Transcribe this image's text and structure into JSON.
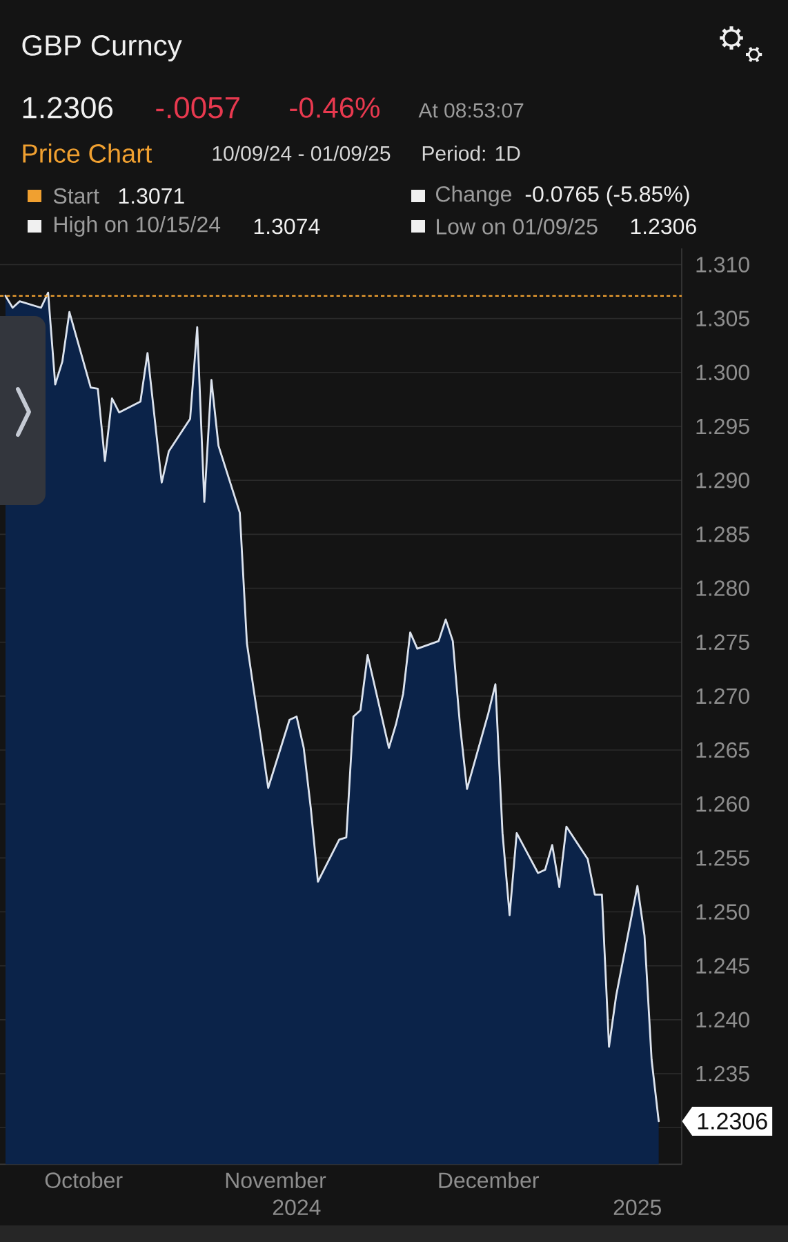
{
  "chart_data": {
    "type": "area",
    "title": "GBP Curncy",
    "subtitle": "Price Chart",
    "x": [
      "2024-10-09",
      "2024-10-10",
      "2024-10-11",
      "2024-10-14",
      "2024-10-15",
      "2024-10-16",
      "2024-10-17",
      "2024-10-18",
      "2024-10-21",
      "2024-10-22",
      "2024-10-23",
      "2024-10-24",
      "2024-10-25",
      "2024-10-28",
      "2024-10-29",
      "2024-10-30",
      "2024-10-31",
      "2024-11-01",
      "2024-11-04",
      "2024-11-05",
      "2024-11-06",
      "2024-11-07",
      "2024-11-08",
      "2024-11-11",
      "2024-11-12",
      "2024-11-13",
      "2024-11-14",
      "2024-11-15",
      "2024-11-18",
      "2024-11-19",
      "2024-11-20",
      "2024-11-21",
      "2024-11-22",
      "2024-11-25",
      "2024-11-26",
      "2024-11-27",
      "2024-11-28",
      "2024-11-29",
      "2024-12-02",
      "2024-12-03",
      "2024-12-04",
      "2024-12-05",
      "2024-12-06",
      "2024-12-09",
      "2024-12-10",
      "2024-12-11",
      "2024-12-12",
      "2024-12-13",
      "2024-12-16",
      "2024-12-17",
      "2024-12-18",
      "2024-12-19",
      "2024-12-20",
      "2024-12-23",
      "2024-12-24",
      "2024-12-25",
      "2024-12-26",
      "2024-12-27",
      "2024-12-30",
      "2024-12-31",
      "2025-01-01",
      "2025-01-02",
      "2025-01-03",
      "2025-01-06",
      "2025-01-07",
      "2025-01-08",
      "2025-01-09"
    ],
    "series": [
      {
        "color": "#0b2349",
        "values": [
          1.3071,
          1.306,
          1.3066,
          1.306,
          1.3074,
          1.2989,
          1.301,
          1.3056,
          1.2986,
          1.2985,
          1.2918,
          1.2976,
          1.2963,
          1.2973,
          1.3018,
          1.2958,
          1.2898,
          1.2927,
          1.2957,
          1.3042,
          1.288,
          1.2993,
          1.2932,
          1.287,
          1.2749,
          1.2704,
          1.266,
          1.2615,
          1.2678,
          1.2681,
          1.2652,
          1.2596,
          1.2528,
          1.2567,
          1.2569,
          1.2681,
          1.2687,
          1.2738,
          1.2652,
          1.2674,
          1.2702,
          1.2759,
          1.2744,
          1.2751,
          1.2771,
          1.2751,
          1.2674,
          1.2614,
          1.2684,
          1.2711,
          1.2573,
          1.2497,
          1.2573,
          1.2536,
          1.2539,
          1.2562,
          1.2523,
          1.2579,
          1.2549,
          1.2516,
          1.2516,
          1.2375,
          1.2422,
          1.2524,
          1.2478,
          1.2363,
          1.2306
        ]
      }
    ],
    "xlim": [
      "2024-10-08T05:20",
      "2025-01-12T05:50"
    ],
    "xticks": [
      {
        "value": "2024-10-20",
        "label": "October"
      },
      {
        "value": "2024-11-16",
        "label": "November"
      },
      {
        "value": "2024-12-16",
        "label": "December"
      }
    ],
    "x2lim": [
      "2024-10-08T05:20",
      "2025-01-12T05:50"
    ],
    "x2ticks": [
      {
        "value": "2024-11-19",
        "label": "2024"
      },
      {
        "value": "2025-01-06",
        "label": "2025"
      }
    ],
    "ylim": [
      1.2266,
      1.3115
    ],
    "yticks": [
      {
        "value": 1.23,
        "label": null
      },
      1.235,
      {
        "value": 1.24,
        "label": "1.240"
      },
      1.245,
      {
        "value": 1.25,
        "label": "1.250"
      },
      1.255,
      {
        "value": 1.26,
        "label": "1.260"
      },
      1.265,
      {
        "value": 1.27,
        "label": "1.270"
      },
      1.275,
      {
        "value": 1.28,
        "label": "1.280"
      },
      1.285,
      {
        "value": 1.29,
        "label": "1.290"
      },
      1.295,
      {
        "value": 1.3,
        "label": "1.300"
      },
      1.305,
      {
        "value": 1.31,
        "label": "1.310"
      }
    ],
    "grid": "y",
    "ref_lines": [
      {
        "axis": "y",
        "value": 1.3071,
        "label": "Start",
        "color": "#f0a030",
        "line_style": "dashed"
      }
    ],
    "annotations": [
      "1.2306",
      "-.0057",
      "-0.46%",
      "At 08:53:07",
      "10/09/24 - 01/09/25",
      "Period: 1D",
      "1.3071",
      "Change",
      "-0.0765 (-5.85%)",
      "High on 10/15/24",
      "1.3074",
      "Low on 01/09/25",
      "1.2306",
      {
        "text": "1.2306",
        "x": "2025-01-09",
        "y": 1.2306
      }
    ]
  }
}
